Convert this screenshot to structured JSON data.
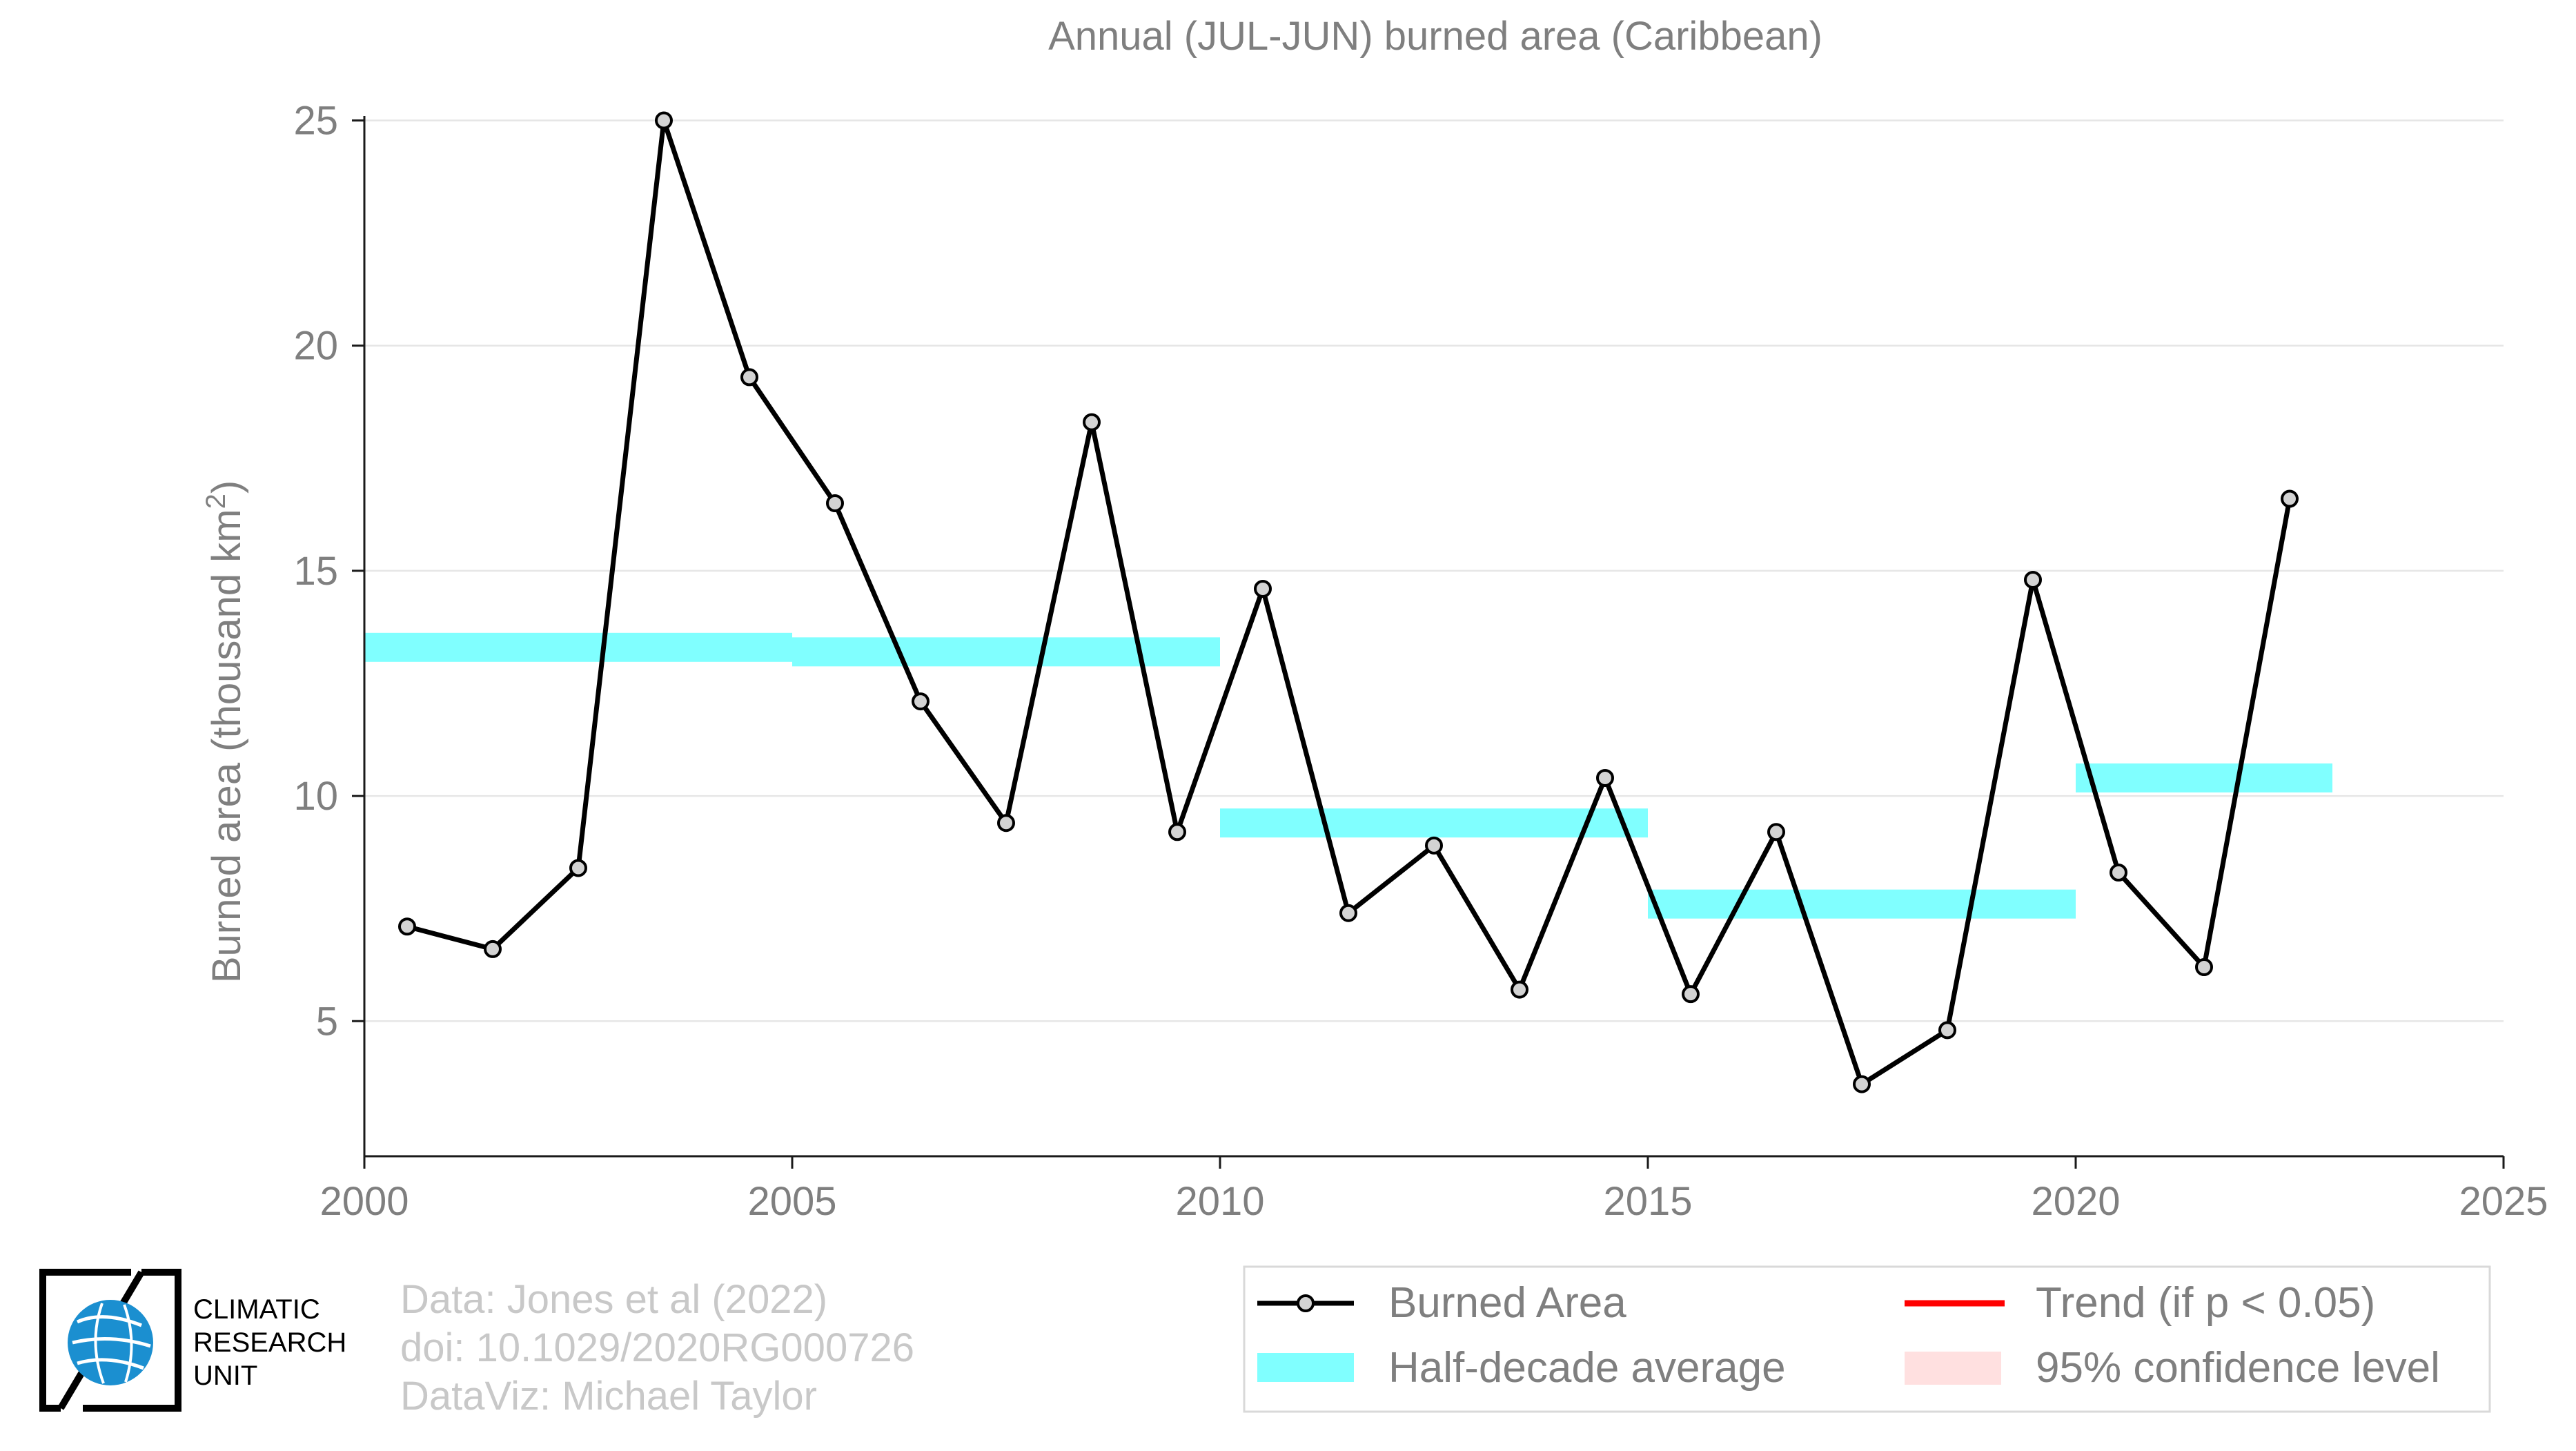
{
  "chart_data": {
    "type": "line",
    "title": "Annual (JUL-JUN) burned area (Caribbean)",
    "ylabel": "Burned area (thousand km",
    "ylabel_superscript": "2",
    "ylabel_close": ")",
    "xlim": [
      2000,
      2025
    ],
    "ylim": [
      2,
      25.1
    ],
    "xticks": [
      2000,
      2005,
      2010,
      2015,
      2020,
      2025
    ],
    "yticks": [
      5,
      10,
      15,
      20,
      25
    ],
    "grid": true,
    "series": [
      {
        "name": "Burned Area",
        "x": [
          2000.5,
          2001.5,
          2002.5,
          2003.5,
          2004.5,
          2005.5,
          2006.5,
          2007.5,
          2008.5,
          2009.5,
          2010.5,
          2011.5,
          2012.5,
          2013.5,
          2014.5,
          2015.5,
          2016.5,
          2017.5,
          2018.5,
          2019.5,
          2020.5,
          2021.5,
          2022.5
        ],
        "y": [
          7.1,
          6.6,
          8.4,
          25.0,
          19.3,
          16.5,
          12.1,
          9.4,
          18.3,
          9.2,
          14.6,
          7.4,
          8.9,
          5.7,
          10.4,
          5.6,
          9.2,
          3.6,
          4.8,
          14.8,
          8.3,
          6.2,
          16.6
        ]
      }
    ],
    "half_decade_average": {
      "name": "Half-decade average",
      "segments": [
        {
          "x0": 2000,
          "x1": 2005,
          "y": 13.3
        },
        {
          "x0": 2005,
          "x1": 2010,
          "y": 13.2
        },
        {
          "x0": 2010,
          "x1": 2015,
          "y": 9.4
        },
        {
          "x0": 2015,
          "x1": 2020,
          "y": 7.6
        },
        {
          "x0": 2020,
          "x1": 2023,
          "y": 10.4
        }
      ]
    },
    "legend": {
      "placement": "bottom",
      "items": [
        "Burned Area",
        "Trend (if p < 0.05)",
        "Half-decade average",
        "95% confidence level"
      ]
    }
  },
  "colors": {
    "line": "#000000",
    "marker_fill": "#d3d3d3",
    "half_decade": "#80ffff",
    "trend": "#ff0000",
    "confidence": "#ffe0e0",
    "text": "#7f7f7f"
  },
  "credits": {
    "line1": "Data: Jones et al (2022)",
    "line2": "doi: 10.1029/2020RG000726",
    "line3": "DataViz: Michael Taylor"
  },
  "logo": {
    "line1": "CLIMATIC",
    "line2": "RESEARCH",
    "line3": "UNIT",
    "icon": "globe-icon"
  }
}
